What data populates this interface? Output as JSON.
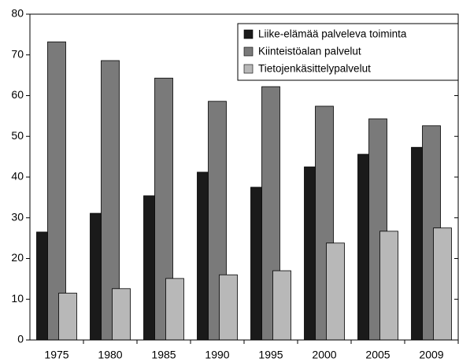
{
  "chart_data": {
    "type": "bar",
    "categories": [
      "1975",
      "1980",
      "1985",
      "1990",
      "1995",
      "2000",
      "2005",
      "2009"
    ],
    "series": [
      {
        "name": "Liike-elämää palveleva toiminta",
        "color": "#1a1a1a",
        "values": [
          26.5,
          31.1,
          35.4,
          41.2,
          37.5,
          42.5,
          45.6,
          47.3
        ]
      },
      {
        "name": "Kiinteistöalan palvelut",
        "color": "#7a7a7a",
        "values": [
          73.2,
          68.6,
          64.3,
          58.6,
          62.2,
          57.4,
          54.3,
          52.6
        ]
      },
      {
        "name": "Tietojenkäsittelypalvelut",
        "color": "#b8b8b8",
        "values": [
          11.5,
          12.6,
          15.1,
          16.0,
          17.0,
          23.8,
          26.7,
          27.5
        ]
      }
    ],
    "ylim": [
      0,
      80
    ],
    "yticks": [
      0,
      10,
      20,
      30,
      40,
      50,
      60,
      70,
      80
    ],
    "grid": false,
    "legend": "upper right"
  }
}
